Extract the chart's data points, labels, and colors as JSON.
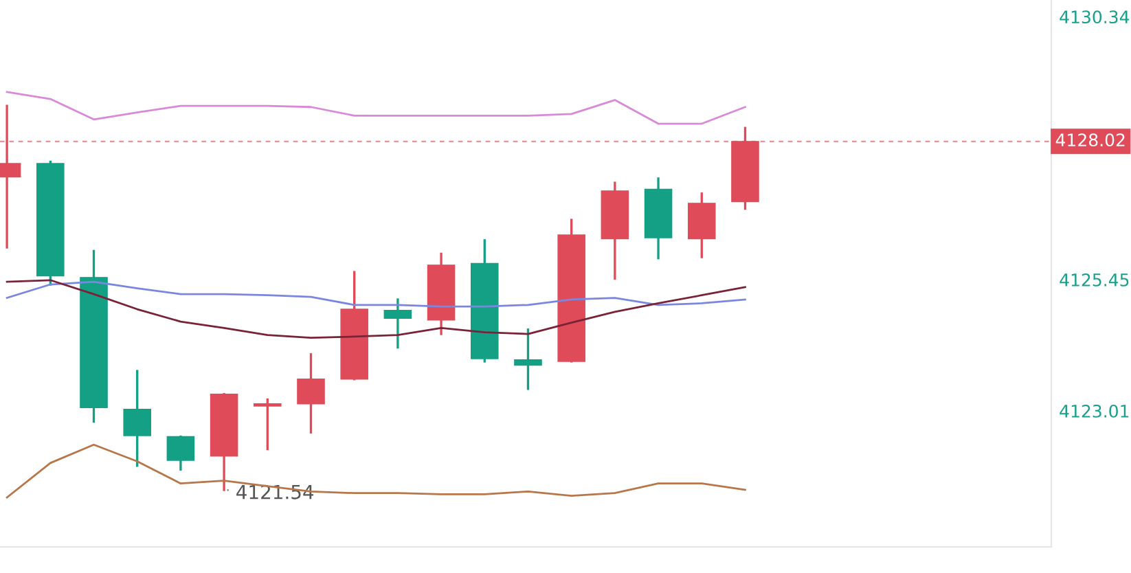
{
  "chart_data": {
    "type": "candlestick",
    "categories": [
      null,
      null,
      null,
      null,
      null,
      null,
      null,
      null,
      null,
      null,
      null,
      null,
      null,
      null,
      null,
      null,
      null,
      null
    ],
    "ohlc": [
      [
        4127.36,
        4128.68,
        4126.05,
        4127.61
      ],
      [
        4127.61,
        4127.64,
        4125.36,
        4125.52
      ],
      [
        4125.49,
        4125.98,
        4122.81,
        4123.07
      ],
      [
        4123.04,
        4123.75,
        4121.99,
        4122.55
      ],
      [
        4122.53,
        4122.53,
        4121.92,
        4122.09
      ],
      [
        4122.17,
        4123.32,
        4121.54,
        4123.32
      ],
      [
        4123.1,
        4123.22,
        4122.3,
        4123.14
      ],
      [
        4123.14,
        4124.06,
        4122.61,
        4123.6
      ],
      [
        4123.6,
        4125.59,
        4123.6,
        4124.9
      ],
      [
        4124.88,
        4125.08,
        4124.19,
        4124.73
      ],
      [
        4124.7,
        4125.93,
        4124.44,
        4125.72
      ],
      [
        4125.75,
        4126.18,
        4123.93,
        4123.98
      ],
      [
        4123.96,
        4124.52,
        4123.42,
        4123.86
      ],
      [
        4123.93,
        4126.56,
        4123.93,
        4126.28
      ],
      [
        4126.21,
        4127.25,
        4125.47,
        4127.1
      ],
      [
        4127.13,
        4127.33,
        4125.85,
        4126.23
      ],
      [
        4126.21,
        4127.05,
        4125.87,
        4126.87
      ],
      [
        4126.9,
        4128.27,
        4126.77,
        4128.02
      ]
    ],
    "colors": [
      "#e04b5a",
      "#13a085",
      "#13a085",
      "#13a085",
      "#13a085",
      "#e04b5a",
      "#e04b5a",
      "#e04b5a",
      "#e04b5a",
      "#13a085",
      "#e04b5a",
      "#13a085",
      "#13a085",
      "#e04b5a",
      "#e04b5a",
      "#13a085",
      "#e04b5a",
      "#e04b5a"
    ],
    "series": [
      {
        "type": "line",
        "color": "#d88ad8",
        "values": [
          4128.94,
          4128.81,
          4128.43,
          4128.56,
          4128.68,
          4128.68,
          4128.68,
          4128.66,
          4128.5,
          4128.5,
          4128.5,
          4128.5,
          4128.5,
          4128.53,
          4128.79,
          4128.35,
          4128.35,
          4128.66
        ]
      },
      {
        "type": "line",
        "color": "#7b86e0",
        "values": [
          4125.11,
          4125.36,
          4125.41,
          4125.29,
          4125.18,
          4125.18,
          4125.16,
          4125.13,
          4124.98,
          4124.98,
          4124.95,
          4124.95,
          4124.98,
          4125.08,
          4125.11,
          4124.98,
          4125.01,
          4125.08
        ]
      },
      {
        "type": "line",
        "color": "#7a2238",
        "values": [
          4125.41,
          4125.44,
          4125.18,
          4124.9,
          4124.67,
          4124.55,
          4124.42,
          4124.37,
          4124.39,
          4124.42,
          4124.55,
          4124.47,
          4124.44,
          4124.65,
          4124.85,
          4125.01,
          4125.16,
          4125.31
        ]
      },
      {
        "type": "line",
        "color": "#b8774a",
        "values": [
          4121.4,
          4122.04,
          4122.38,
          4122.07,
          4121.66,
          4121.71,
          4121.61,
          4121.51,
          4121.48,
          4121.48,
          4121.46,
          4121.46,
          4121.51,
          4121.43,
          4121.48,
          4121.66,
          4121.66,
          4121.54
        ]
      }
    ],
    "ylim": [
      4120.48,
      4130.65
    ],
    "yticks": [
      4123.01,
      4125.45,
      4130.34
    ],
    "ref_lines": [
      {
        "axis": "y",
        "value": 4128.02,
        "label": "4128.02",
        "color": "#e04b5a",
        "line_style": "dashed"
      }
    ],
    "annotations": [
      {
        "text": "4121.54",
        "y": 4121.54
      }
    ],
    "tick_labels": "y",
    "grid": false,
    "legend": false
  }
}
